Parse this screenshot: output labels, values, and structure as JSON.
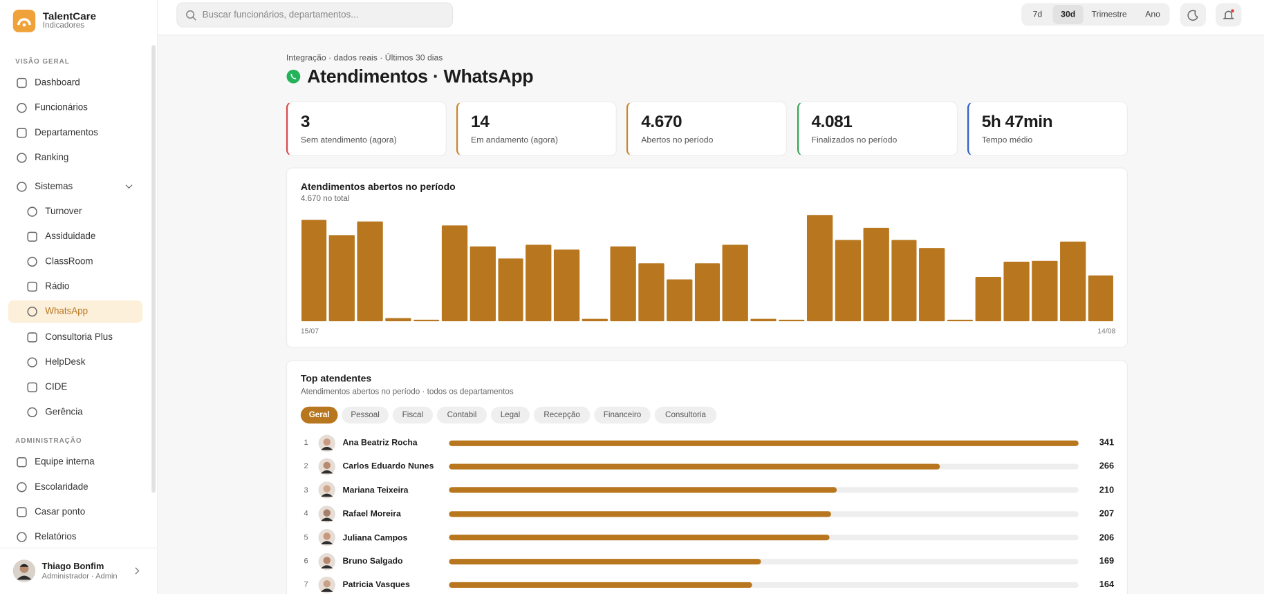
{
  "sidebar": {
    "brand": {
      "name": "TalentCare",
      "tagline": "Indicadores"
    },
    "overview_title": "VISÃO GERAL",
    "overview_items": [
      "Dashboard",
      "Funcionários",
      "Departamentos",
      "Ranking"
    ],
    "systems_label": "Sistemas",
    "system_items": [
      {
        "label": "Turnover"
      },
      {
        "label": "Assiduidade"
      },
      {
        "label": "ClassRoom"
      },
      {
        "label": "Rádio"
      },
      {
        "label": "WhatsApp",
        "active": true
      },
      {
        "label": "Consultoria Plus"
      },
      {
        "label": "HelpDesk"
      },
      {
        "label": "CIDE"
      },
      {
        "label": "Gerência"
      }
    ],
    "admin_title": "ADMINISTRAÇÃO",
    "admin_items": [
      "Equipe interna",
      "Escolaridade",
      "Casar ponto",
      "Relatórios"
    ],
    "user": {
      "name": "Thiago Bonfim",
      "role": "Administrador · Admin"
    }
  },
  "topbar": {
    "search_placeholder": "Buscar funcionários, departamentos...",
    "periods": [
      "7d",
      "30d",
      "Trimestre",
      "Ano"
    ],
    "active_period": 1
  },
  "header": {
    "breadcrumb": "Integração · dados reais · Últimos 30 dias",
    "title": "Atendimentos · WhatsApp"
  },
  "kpis": [
    {
      "value": "3",
      "label": "Sem atendimento (agora)",
      "color": "#d94a4a"
    },
    {
      "value": "14",
      "label": "Em andamento (agora)",
      "color": "#c8862a"
    },
    {
      "value": "4.670",
      "label": "Abertos no período",
      "color": "#c8862a"
    },
    {
      "value": "4.081",
      "label": "Finalizados no período",
      "color": "#3aa65a"
    },
    {
      "value": "5h 47min",
      "label": "Tempo médio",
      "color": "#2f5fc8"
    }
  ],
  "chart_data": {
    "type": "bar",
    "title": "Atendimentos abertos no período",
    "subtitle": "4.670 no total",
    "color": "#b8771f",
    "categories": [
      "15/07",
      null,
      null,
      null,
      null,
      null,
      null,
      null,
      null,
      null,
      null,
      null,
      null,
      null,
      null,
      null,
      null,
      null,
      null,
      null,
      null,
      null,
      null,
      null,
      null,
      null,
      null,
      null,
      "14/08"
    ],
    "values": [
      276,
      234,
      272,
      9,
      4,
      261,
      204,
      171,
      208,
      195,
      7,
      204,
      158,
      114,
      158,
      208,
      7,
      4,
      289,
      221,
      254,
      221,
      199,
      4,
      120,
      162,
      164,
      217,
      125
    ]
  },
  "top_agents": {
    "title": "Top atendentes",
    "subtitle": "Atendimentos abertos no período · todos os departamentos",
    "tabs": [
      "Geral",
      "Pessoal",
      "Fiscal",
      "Contabil",
      "Legal",
      "Recepção",
      "Financeiro",
      "Consultoria"
    ],
    "active_tab": 0,
    "color": "#b8771f",
    "rows": [
      {
        "rank": "1",
        "name": "Ana Beatriz Rocha",
        "value": 341
      },
      {
        "rank": "2",
        "name": "Carlos Eduardo Nunes",
        "value": 266
      },
      {
        "rank": "3",
        "name": "Mariana Teixeira",
        "value": 210
      },
      {
        "rank": "4",
        "name": "Rafael Moreira",
        "value": 207
      },
      {
        "rank": "5",
        "name": "Juliana Campos",
        "value": 206
      },
      {
        "rank": "6",
        "name": "Bruno Salgado",
        "value": 169
      },
      {
        "rank": "7",
        "name": "Patricia Vasques",
        "value": 164
      }
    ]
  }
}
